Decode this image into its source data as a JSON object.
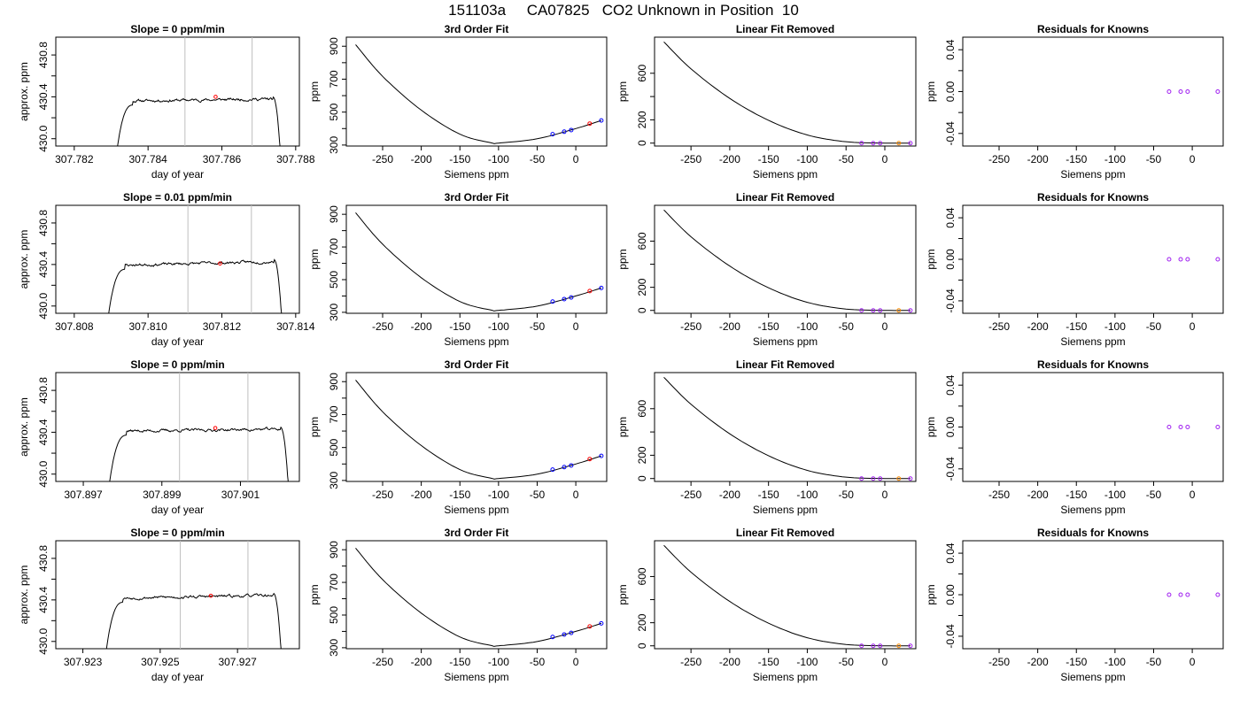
{
  "figure_title": "151103a     CA07825   CO2 Unknown in Position  10",
  "column_titles": {
    "fit": "3rd Order Fit",
    "linear_removed": "Linear Fit Removed",
    "residuals": "Residuals for Knowns"
  },
  "axis_labels": {
    "time_x": "day of year",
    "time_y": "approx. ppm",
    "siemens_x": "Siemens ppm",
    "ppm_y": "ppm"
  },
  "colors": {
    "trace": "#000000",
    "vertical_markers": "#bebebe",
    "unknown_point": "#ff0000",
    "known_points": "#0000ff",
    "unknown_point_linear": "#ff8c00",
    "residual_points": "#a020f0"
  },
  "chart_data": [
    {
      "type": "line",
      "panel": "time-series-1",
      "title": "Slope =  0  ppm/min",
      "xlabel": "day of year",
      "ylabel": "approx. ppm",
      "xlim": [
        307.7815,
        307.7881
      ],
      "ylim": [
        429.93,
        430.97
      ],
      "xticks": [
        307.782,
        307.784,
        307.786,
        307.788
      ],
      "xticklabels": [
        "307.782",
        "307.784",
        "307.786",
        "307.788"
      ],
      "yticks": [
        430.0,
        430.4,
        430.8
      ],
      "yticklabels": [
        "430.0",
        "430.4",
        "430.8"
      ],
      "minor_yticks": [
        430.2,
        430.6
      ],
      "x_start": 307.78315,
      "x_end": 307.78758,
      "plateau": 430.37,
      "trend": 0.02,
      "vlines": [
        307.785,
        307.78682
      ],
      "marker": {
        "x": 307.78583,
        "y": 430.4
      },
      "seed": 11
    },
    {
      "type": "line",
      "panel": "time-series-2",
      "title": "Slope =  0.01  ppm/min",
      "xlabel": "day of year",
      "ylabel": "approx. ppm",
      "xlim": [
        307.8075,
        307.8141
      ],
      "ylim": [
        429.93,
        430.97
      ],
      "xticks": [
        307.808,
        307.81,
        307.812,
        307.814
      ],
      "xticklabels": [
        "307.808",
        "307.810",
        "307.812",
        "307.814"
      ],
      "yticks": [
        430.0,
        430.4,
        430.8
      ],
      "yticklabels": [
        "430.0",
        "430.4",
        "430.8"
      ],
      "minor_yticks": [
        430.2,
        430.6
      ],
      "x_start": 307.80891,
      "x_end": 307.81362,
      "plateau": 430.41,
      "trend": 0.04,
      "vlines": [
        307.81108,
        307.8128
      ],
      "marker": {
        "x": 307.81195,
        "y": 430.41
      },
      "seed": 23
    },
    {
      "type": "line",
      "panel": "time-series-3",
      "title": "Slope =  0  ppm/min",
      "xlabel": "day of year",
      "ylabel": "approx. ppm",
      "xlim": [
        307.8963,
        307.9025
      ],
      "ylim": [
        429.93,
        430.97
      ],
      "xticks": [
        307.897,
        307.899,
        307.901
      ],
      "xticklabels": [
        "307.897",
        "307.899",
        "307.901"
      ],
      "yticks": [
        430.0,
        430.4,
        430.8
      ],
      "yticklabels": [
        "430.0",
        "430.4",
        "430.8"
      ],
      "minor_yticks": [
        430.2,
        430.6
      ],
      "x_start": 307.89765,
      "x_end": 307.90222,
      "plateau": 430.42,
      "trend": 0.02,
      "vlines": [
        307.89945,
        307.90119
      ],
      "marker": {
        "x": 307.90036,
        "y": 430.44
      },
      "seed": 37
    },
    {
      "type": "line",
      "panel": "time-series-4",
      "title": "Slope =  0  ppm/min",
      "xlabel": "day of year",
      "ylabel": "approx. ppm",
      "xlim": [
        307.9223,
        307.9286
      ],
      "ylim": [
        429.93,
        430.97
      ],
      "xticks": [
        307.923,
        307.925,
        307.927
      ],
      "xticklabels": [
        "307.923",
        "307.925",
        "307.927"
      ],
      "yticks": [
        430.0,
        430.4,
        430.8
      ],
      "yticklabels": [
        "430.0",
        "430.4",
        "430.8"
      ],
      "minor_yticks": [
        430.2,
        430.6
      ],
      "x_start": 307.92359,
      "x_end": 307.92813,
      "plateau": 430.43,
      "trend": 0.03,
      "vlines": [
        307.92552,
        307.92727
      ],
      "marker": {
        "x": 307.92631,
        "y": 430.44
      },
      "seed": 53
    },
    {
      "type": "line",
      "panel": "cubic-fit",
      "title": "3rd Order Fit",
      "xlabel": "Siemens ppm",
      "ylabel": "ppm",
      "xlim": [
        -297,
        40
      ],
      "ylim": [
        294,
        955
      ],
      "xticks": [
        -250,
        -200,
        -150,
        -100,
        -50,
        0
      ],
      "yticks": [
        300,
        500,
        700,
        900
      ],
      "minor_yticks": [
        400,
        600,
        800
      ],
      "fit_points": [
        [
          -285,
          910
        ],
        [
          -250,
          717
        ],
        [
          -200,
          512
        ],
        [
          -150,
          366
        ],
        [
          -110,
          314
        ],
        [
          -100,
          312
        ],
        [
          -50,
          338
        ],
        [
          0,
          400
        ],
        [
          33,
          449
        ]
      ],
      "known_points": [
        [
          -30,
          366
        ],
        [
          -15,
          381
        ],
        [
          -6,
          391
        ],
        [
          33,
          449
        ]
      ],
      "unknown_point": [
        18,
        430
      ],
      "repeated_in_rows": 4
    },
    {
      "type": "line",
      "panel": "linear-fit-removed",
      "title": "Linear Fit Removed",
      "xlabel": "Siemens ppm",
      "ylabel": "ppm",
      "xlim": [
        -297,
        40
      ],
      "ylim": [
        -25,
        910
      ],
      "xticks": [
        -250,
        -200,
        -150,
        -100,
        -50,
        0
      ],
      "yticks": [
        0,
        200,
        600
      ],
      "minor_yticks": [
        400
      ],
      "fit_points": [
        [
          -285,
          870
        ],
        [
          -250,
          638
        ],
        [
          -200,
          384
        ],
        [
          -150,
          196
        ],
        [
          -100,
          70
        ],
        [
          -50,
          12
        ],
        [
          0,
          0
        ],
        [
          33,
          0
        ]
      ],
      "known_points": [
        [
          -30,
          0
        ],
        [
          -15,
          0
        ],
        [
          -6,
          0
        ],
        [
          33,
          0
        ]
      ],
      "unknown_point": [
        18,
        0
      ],
      "repeated_in_rows": 4
    },
    {
      "type": "scatter",
      "panel": "residuals",
      "title": "Residuals for Knowns",
      "xlabel": "Siemens ppm",
      "ylabel": "ppm",
      "xlim": [
        -297,
        40
      ],
      "ylim": [
        -0.052,
        0.052
      ],
      "xticks": [
        -250,
        -200,
        -150,
        -100,
        -50,
        0
      ],
      "yticks": [
        -0.04,
        0.0,
        0.04
      ],
      "yticklabels": [
        "-0.04",
        "0.00",
        "0.04"
      ],
      "minor_yticks": [
        -0.02,
        0.02
      ],
      "points": [
        [
          -30,
          0
        ],
        [
          -15,
          0
        ],
        [
          -6,
          0
        ],
        [
          33,
          0
        ]
      ],
      "repeated_in_rows": 4
    }
  ]
}
